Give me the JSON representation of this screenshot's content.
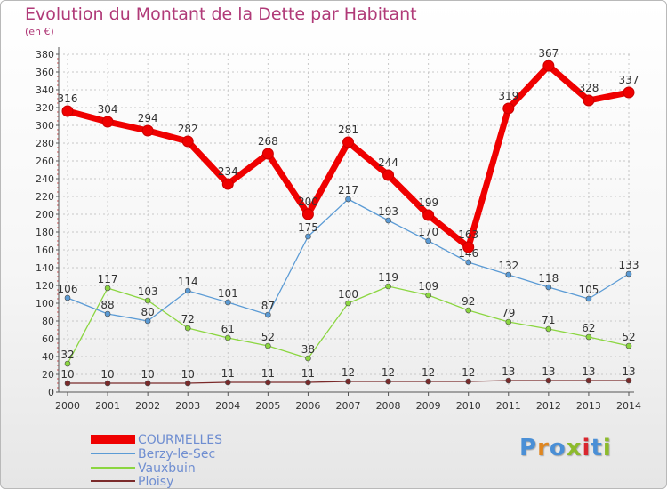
{
  "title": "Evolution du Montant de la Dette par Habitant",
  "unit": "(en €)",
  "logo_text": "Proxiti",
  "logo_colors": [
    "#4a8fd6",
    "#e0861f",
    "#4a8fd6",
    "#8dbb2c",
    "#d9262e",
    "#4a8fd6",
    "#8dbb2c"
  ],
  "colors": {
    "background_top": "#ffffff",
    "background_bottom": "#e6e6e6",
    "axis": "#555555",
    "grid": "#c7c7c7",
    "title": "#b03a78",
    "legend_text": "#6f8ed1"
  },
  "chart_data": {
    "type": "line",
    "title": "Evolution du Montant de la Dette par Habitant",
    "ylabel": "(en €)",
    "xlabel": "",
    "x": [
      "2000",
      "2001",
      "2002",
      "2003",
      "2004",
      "2005",
      "2006",
      "2007",
      "2008",
      "2009",
      "2010",
      "2011",
      "2012",
      "2013",
      "2014"
    ],
    "ylim": [
      0,
      380
    ],
    "yticks": [
      0,
      20,
      40,
      60,
      80,
      100,
      120,
      140,
      160,
      180,
      200,
      220,
      240,
      260,
      280,
      300,
      320,
      340,
      360,
      380
    ],
    "grid": true,
    "legend_position": "bottom-left",
    "series": [
      {
        "name": "COURMELLES",
        "color": "#ef0000",
        "values": [
          316,
          304,
          294,
          282,
          234,
          268,
          200,
          281,
          244,
          199,
          163,
          319,
          367,
          328,
          337
        ],
        "labels": [
          "316",
          "304",
          "294",
          "282",
          "234",
          "268",
          "200",
          "281",
          "244",
          "199",
          "163",
          "319",
          "367",
          "328",
          "337"
        ]
      },
      {
        "name": "Berzy-le-Sec",
        "color": "#5b9bd5",
        "values": [
          106,
          88,
          80,
          114,
          101,
          87,
          175,
          217,
          193,
          170,
          146,
          132,
          118,
          105,
          133
        ],
        "labels": [
          "106",
          "88",
          "80",
          "114",
          "101",
          "87",
          "175",
          "217",
          "193",
          "170",
          "146",
          "132",
          "118",
          "105",
          "133"
        ]
      },
      {
        "name": "Vauxbuin",
        "color": "#8bd640",
        "values": [
          32,
          117,
          103,
          72,
          61,
          52,
          38,
          100,
          119,
          109,
          92,
          79,
          71,
          62,
          52
        ],
        "labels": [
          "32",
          "117",
          "103",
          "72",
          "61",
          "52",
          "38",
          "100",
          "119",
          "109",
          "92",
          "79",
          "71",
          "62",
          "52"
        ]
      },
      {
        "name": "Ploisy",
        "color": "#7a2a2a",
        "values": [
          10,
          10,
          10,
          10,
          11,
          11,
          11,
          12,
          12,
          12,
          12,
          13,
          13,
          13,
          13
        ],
        "labels": [
          "10",
          "10",
          "10",
          "10",
          "11",
          "11",
          "11",
          "12",
          "12",
          "12",
          "12",
          "13",
          "13",
          "13",
          "13"
        ]
      }
    ]
  }
}
